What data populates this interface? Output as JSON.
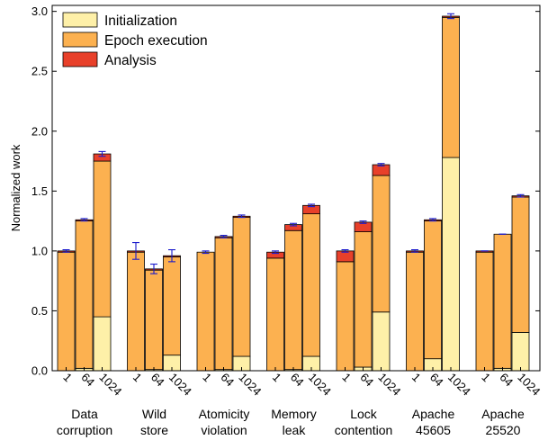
{
  "chart_data": {
    "type": "bar",
    "stacked": true,
    "ylabel": "Normalized work",
    "ylim": [
      0,
      3.05
    ],
    "yticks": [
      "0.0",
      "0.5",
      "1.0",
      "1.5",
      "2.0",
      "2.5",
      "3.0"
    ],
    "grid": false,
    "legend_position": "top-left",
    "sub_categories": [
      "1",
      "64",
      "1024"
    ],
    "groups": [
      {
        "label": [
          "Data",
          "corruption"
        ]
      },
      {
        "label": [
          "Wild",
          "store"
        ]
      },
      {
        "label": [
          "Atomicity",
          "violation"
        ]
      },
      {
        "label": [
          "Memory",
          "leak"
        ]
      },
      {
        "label": [
          "Lock",
          "contention"
        ]
      },
      {
        "label": [
          "Apache",
          "45605"
        ]
      },
      {
        "label": [
          "Apache",
          "25520"
        ]
      }
    ],
    "series": [
      {
        "name": "Initialization",
        "color": "#fef0a8",
        "values": [
          [
            0.0,
            0.02,
            0.45
          ],
          [
            0.0,
            0.01,
            0.13
          ],
          [
            0.0,
            0.01,
            0.12
          ],
          [
            0.0,
            0.01,
            0.12
          ],
          [
            0.0,
            0.03,
            0.49
          ],
          [
            0.0,
            0.1,
            1.78
          ],
          [
            0.0,
            0.02,
            0.32
          ]
        ]
      },
      {
        "name": "Epoch execution",
        "color": "#fcb150",
        "values": [
          [
            0.99,
            1.23,
            1.3
          ],
          [
            0.99,
            0.83,
            0.82
          ],
          [
            0.99,
            1.1,
            1.16
          ],
          [
            0.94,
            1.16,
            1.19
          ],
          [
            0.91,
            1.13,
            1.14
          ],
          [
            0.99,
            1.15,
            1.17
          ],
          [
            0.99,
            1.12,
            1.13
          ]
        ]
      },
      {
        "name": "Analysis",
        "color": "#e8402a",
        "values": [
          [
            0.01,
            0.01,
            0.06
          ],
          [
            0.01,
            0.01,
            0.01
          ],
          [
            0.0,
            0.01,
            0.01
          ],
          [
            0.05,
            0.05,
            0.07
          ],
          [
            0.09,
            0.08,
            0.09
          ],
          [
            0.01,
            0.01,
            0.01
          ],
          [
            0.01,
            0.0,
            0.01
          ]
        ]
      }
    ],
    "totals": [
      [
        1.0,
        1.26,
        1.81
      ],
      [
        1.0,
        0.85,
        0.96
      ],
      [
        0.99,
        1.12,
        1.29
      ],
      [
        0.99,
        1.22,
        1.38
      ],
      [
        1.0,
        1.24,
        1.72
      ],
      [
        1.0,
        1.26,
        2.96
      ],
      [
        1.0,
        1.14,
        1.46
      ]
    ],
    "error": [
      [
        0.01,
        0.01,
        0.02
      ],
      [
        0.07,
        0.04,
        0.05
      ],
      [
        0.01,
        0.01,
        0.01
      ],
      [
        0.01,
        0.01,
        0.01
      ],
      [
        0.01,
        0.01,
        0.01
      ],
      [
        0.01,
        0.01,
        0.02
      ],
      [
        0.0,
        0.0,
        0.01
      ]
    ]
  }
}
